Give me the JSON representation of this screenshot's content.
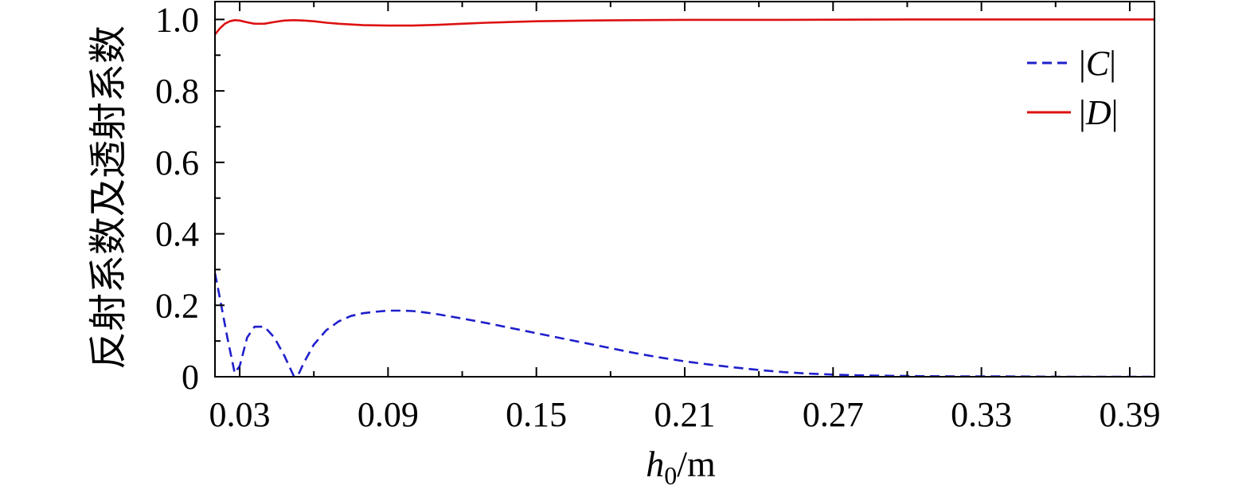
{
  "chart_data": {
    "type": "line",
    "xlabel": {
      "italic": "h",
      "sub": "0",
      "unit": "/m"
    },
    "ylabel": "反射系数及透射系数",
    "xlim": [
      0.02,
      0.4
    ],
    "ylim": [
      0,
      1.05
    ],
    "xticks": [
      0.03,
      0.09,
      0.15,
      0.21,
      0.27,
      0.33,
      0.39
    ],
    "xtick_labels": [
      "0.03",
      "0.09",
      "0.15",
      "0.21",
      "0.27",
      "0.33",
      "0.39"
    ],
    "xminor": [
      0.06,
      0.12,
      0.18,
      0.24,
      0.3,
      0.36
    ],
    "yticks": [
      0,
      0.2,
      0.4,
      0.6,
      0.8,
      1.0
    ],
    "ytick_labels": [
      "0",
      "0.2",
      "0.4",
      "0.6",
      "0.8",
      "1.0"
    ],
    "yminor": [
      0.1,
      0.3,
      0.5,
      0.7,
      0.9
    ],
    "grid": false,
    "legend_position": "top-right",
    "series": [
      {
        "name": "|C|",
        "legend_italic": "C",
        "color": "#1f1fcc",
        "dash": "dashed",
        "x": [
          0.02,
          0.022,
          0.025,
          0.028,
          0.03,
          0.033,
          0.036,
          0.04,
          0.044,
          0.048,
          0.052,
          0.054,
          0.056,
          0.06,
          0.065,
          0.07,
          0.075,
          0.08,
          0.085,
          0.09,
          0.095,
          0.1,
          0.105,
          0.11,
          0.12,
          0.13,
          0.14,
          0.15,
          0.16,
          0.17,
          0.18,
          0.19,
          0.2,
          0.21,
          0.22,
          0.23,
          0.24,
          0.25,
          0.26,
          0.27,
          0.28,
          0.29,
          0.3,
          0.32,
          0.34,
          0.36,
          0.38,
          0.4
        ],
        "y": [
          0.29,
          0.22,
          0.11,
          0.01,
          0.03,
          0.11,
          0.14,
          0.14,
          0.11,
          0.06,
          0.0,
          0.01,
          0.04,
          0.09,
          0.13,
          0.155,
          0.17,
          0.178,
          0.182,
          0.185,
          0.185,
          0.184,
          0.18,
          0.175,
          0.163,
          0.15,
          0.136,
          0.122,
          0.108,
          0.094,
          0.08,
          0.066,
          0.054,
          0.043,
          0.034,
          0.026,
          0.019,
          0.013,
          0.009,
          0.006,
          0.004,
          0.003,
          0.002,
          0.001,
          0.001,
          0.0,
          0.0,
          0.0
        ]
      },
      {
        "name": "|D|",
        "legend_italic": "D",
        "color": "#dd1111",
        "dash": "solid",
        "x": [
          0.02,
          0.022,
          0.024,
          0.026,
          0.028,
          0.03,
          0.033,
          0.036,
          0.04,
          0.044,
          0.048,
          0.052,
          0.056,
          0.06,
          0.065,
          0.07,
          0.08,
          0.09,
          0.1,
          0.11,
          0.12,
          0.13,
          0.14,
          0.15,
          0.17,
          0.19,
          0.21,
          0.25,
          0.3,
          0.35,
          0.4
        ],
        "y": [
          0.958,
          0.975,
          0.988,
          0.995,
          0.998,
          0.997,
          0.992,
          0.988,
          0.988,
          0.993,
          0.997,
          0.998,
          0.997,
          0.995,
          0.991,
          0.988,
          0.984,
          0.983,
          0.983,
          0.985,
          0.988,
          0.991,
          0.993,
          0.995,
          0.997,
          0.998,
          0.999,
          0.999,
          1.0,
          1.0,
          1.0
        ]
      }
    ]
  }
}
